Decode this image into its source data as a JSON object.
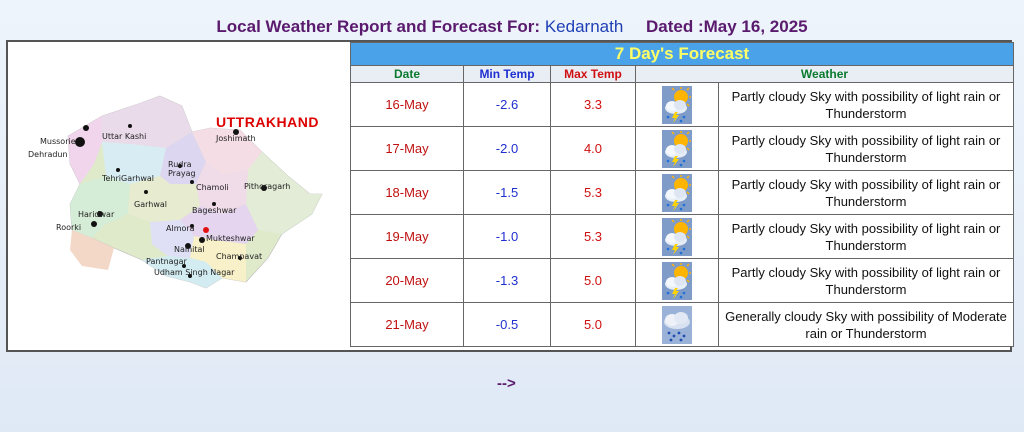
{
  "header": {
    "prefix": "Local Weather Report and Forecast For:",
    "location": "Kedarnath",
    "dated": "Dated :May 16, 2025"
  },
  "map": {
    "title": "UTTRAKHAND",
    "cities": [
      "Mussorie",
      "Dehradun",
      "Uttar Kashi",
      "Joshimath",
      "Rudra Prayag",
      "TehriGarhwal",
      "Chamoli",
      "Pithoragarh",
      "Garhwal",
      "Bageshwar",
      "Haridwar",
      "Almora",
      "Roorki",
      "Mukteshwar",
      "Nainital",
      "Champavat",
      "Pantnagar",
      "Udham Singh Nagar"
    ]
  },
  "forecast": {
    "heading": "7 Day's Forecast",
    "columns": {
      "date": "Date",
      "min": "Min Temp",
      "max": "Max Temp",
      "weather": "Weather"
    },
    "rows": [
      {
        "date": "16-May",
        "min": "-2.6",
        "max": "3.3",
        "icon": "partly-cloudy-thunder-icon",
        "desc": "Partly cloudy Sky with possibility of light rain or Thunderstorm"
      },
      {
        "date": "17-May",
        "min": "-2.0",
        "max": "4.0",
        "icon": "partly-cloudy-thunder-icon",
        "desc": "Partly cloudy Sky with possibility of light rain or Thunderstorm"
      },
      {
        "date": "18-May",
        "min": "-1.5",
        "max": "5.3",
        "icon": "partly-cloudy-thunder-icon",
        "desc": "Partly cloudy Sky with possibility of light rain or Thunderstorm"
      },
      {
        "date": "19-May",
        "min": "-1.0",
        "max": "5.3",
        "icon": "partly-cloudy-thunder-icon",
        "desc": "Partly cloudy Sky with possibility of light rain or Thunderstorm"
      },
      {
        "date": "20-May",
        "min": "-1.3",
        "max": "5.0",
        "icon": "partly-cloudy-thunder-icon",
        "desc": "Partly cloudy Sky with possibility of light rain or Thunderstorm"
      },
      {
        "date": "21-May",
        "min": "-0.5",
        "max": "5.0",
        "icon": "cloudy-rain-icon",
        "desc": "Generally cloudy Sky with possibility of Moderate rain or Thunderstorm"
      }
    ]
  },
  "footer": {
    "arrow": "-->"
  }
}
